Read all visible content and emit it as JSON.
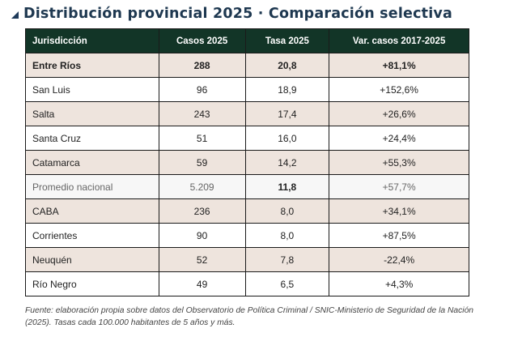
{
  "title": "Distribución provincial 2025 · Comparación selectiva",
  "table": {
    "headers": [
      "Jurisdicción",
      "Casos 2025",
      "Tasa 2025",
      "Var. casos 2017-2025"
    ],
    "rows": [
      {
        "jurisdiccion": "Entre Ríos",
        "casos": "288",
        "tasa": "20,8",
        "var": "+81,1%"
      },
      {
        "jurisdiccion": "San Luis",
        "casos": "96",
        "tasa": "18,9",
        "var": "+152,6%"
      },
      {
        "jurisdiccion": "Salta",
        "casos": "243",
        "tasa": "17,4",
        "var": "+26,6%"
      },
      {
        "jurisdiccion": "Santa Cruz",
        "casos": "51",
        "tasa": "16,0",
        "var": "+24,4%"
      },
      {
        "jurisdiccion": "Catamarca",
        "casos": "59",
        "tasa": "14,2",
        "var": "+55,3%"
      },
      {
        "jurisdiccion": "Promedio nacional",
        "casos": "5.209",
        "tasa": "11,8",
        "var": "+57,7%"
      },
      {
        "jurisdiccion": "CABA",
        "casos": "236",
        "tasa": "8,0",
        "var": "+34,1%"
      },
      {
        "jurisdiccion": "Corrientes",
        "casos": "90",
        "tasa": "8,0",
        "var": "+87,5%"
      },
      {
        "jurisdiccion": "Neuquén",
        "casos": "52",
        "tasa": "7,8",
        "var": "-22,4%"
      },
      {
        "jurisdiccion": "Río Negro",
        "casos": "49",
        "tasa": "6,5",
        "var": "+4,3%"
      }
    ]
  },
  "source": "Fuente: elaboración propia sobre datos del Observatorio de Política Criminal / SNIC-Ministerio de Seguridad de la Nación (2025). Tasas cada 100.000 habitantes de 5 años y más.",
  "colors": {
    "header_bg": "#123527",
    "shade_row": "#eee4dd",
    "title": "#1e3850"
  }
}
